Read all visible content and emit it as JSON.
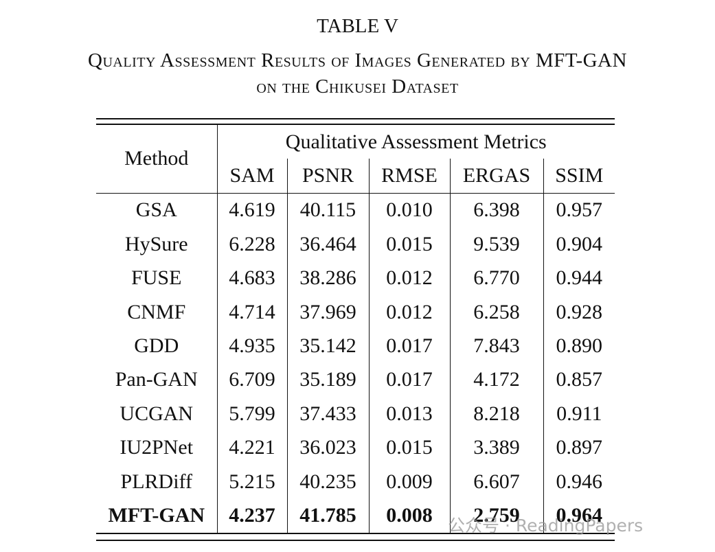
{
  "header": {
    "title": "TABLE V",
    "caption": [
      "Quality Assessment Results of Images Generated by MFT-GAN",
      "on the Chikusei Dataset"
    ]
  },
  "table": {
    "method_header": "Method",
    "group_header": "Qualitative Assessment Metrics",
    "columns": [
      "SAM",
      "PSNR",
      "RMSE",
      "ERGAS",
      "SSIM"
    ],
    "rows": [
      [
        "GSA",
        "4.619",
        "40.115",
        "0.010",
        "6.398",
        "0.957"
      ],
      [
        "HySure",
        "6.228",
        "36.464",
        "0.015",
        "9.539",
        "0.904"
      ],
      [
        "FUSE",
        "4.683",
        "38.286",
        "0.012",
        "6.770",
        "0.944"
      ],
      [
        "CNMF",
        "4.714",
        "37.969",
        "0.012",
        "6.258",
        "0.928"
      ],
      [
        "GDD",
        "4.935",
        "35.142",
        "0.017",
        "7.843",
        "0.890"
      ],
      [
        "Pan-GAN",
        "6.709",
        "35.189",
        "0.017",
        "4.172",
        "0.857"
      ],
      [
        "UCGAN",
        "5.799",
        "37.433",
        "0.013",
        "8.218",
        "0.911"
      ],
      [
        "IU2PNet",
        "4.221",
        "36.023",
        "0.015",
        "3.389",
        "0.897"
      ],
      [
        "PLRDiff",
        "5.215",
        "40.235",
        "0.009",
        "6.607",
        "0.946"
      ],
      [
        "MFT-GAN",
        "4.237",
        "41.785",
        "0.008",
        "2.759",
        "0.964"
      ]
    ]
  },
  "watermark": "公众号 · ReadingPapers"
}
